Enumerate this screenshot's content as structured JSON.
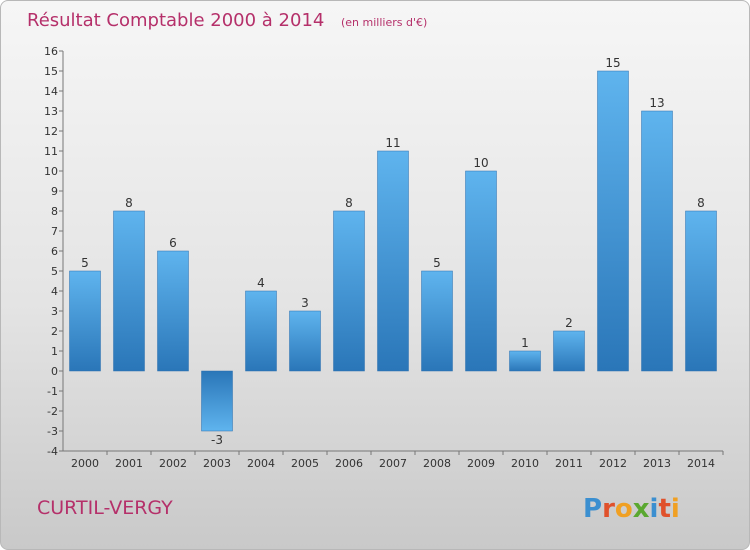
{
  "chart_data": {
    "type": "bar",
    "title": "Résultat Comptable 2000 à 2014",
    "subtitle": "(en milliers d'€)",
    "categories": [
      "2000",
      "2001",
      "2002",
      "2003",
      "2004",
      "2005",
      "2006",
      "2007",
      "2008",
      "2009",
      "2010",
      "2011",
      "2012",
      "2013",
      "2014"
    ],
    "values": [
      5,
      8,
      6,
      -3,
      4,
      3,
      8,
      11,
      5,
      10,
      1,
      2,
      15,
      13,
      8
    ],
    "ylim": [
      -4,
      16
    ],
    "yticks": [
      -4,
      -3,
      -2,
      -1,
      0,
      1,
      2,
      3,
      4,
      5,
      6,
      7,
      8,
      9,
      10,
      11,
      12,
      13,
      14,
      15,
      16
    ],
    "grid": false,
    "bar_color": "#3d8fd0"
  },
  "location": "CURTIL-VERGY",
  "brand": {
    "letters": [
      {
        "ch": "P",
        "color": "#3b8fd0"
      },
      {
        "ch": "r",
        "color": "#e0512b"
      },
      {
        "ch": "o",
        "color": "#f0a023"
      },
      {
        "ch": "x",
        "color": "#5aa830"
      },
      {
        "ch": "i",
        "color": "#3b8fd0"
      },
      {
        "ch": "t",
        "color": "#e0512b"
      },
      {
        "ch": "i",
        "color": "#f0a023"
      }
    ]
  }
}
